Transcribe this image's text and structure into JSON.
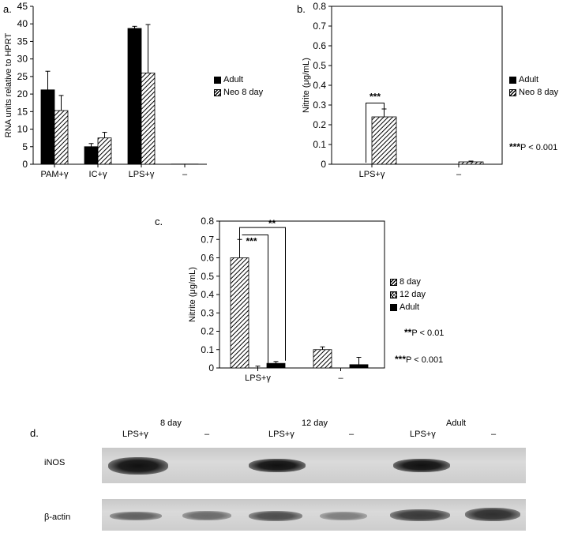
{
  "panels": {
    "a": "a.",
    "b": "b.",
    "c": "c.",
    "d": "d."
  },
  "chart_data": [
    {
      "type": "bar",
      "panel": "a",
      "ylabel": "RNA units relative to HPRT",
      "xlabel": "",
      "categories": [
        "PAM+γ",
        "IC+γ",
        "LPS+γ",
        "–"
      ],
      "series": [
        {
          "name": "Adult",
          "pattern": "solid",
          "values": [
            21.2,
            5.0,
            38.7,
            0.05
          ],
          "errors": [
            5.3,
            0.9,
            0.6,
            0
          ]
        },
        {
          "name": "Neo 8 day",
          "pattern": "hatch",
          "values": [
            15.3,
            7.5,
            26.0,
            0.05
          ],
          "errors": [
            4.3,
            1.6,
            13.8,
            0
          ]
        }
      ],
      "ylim": [
        0,
        45
      ],
      "yticks": [
        0,
        5,
        10,
        15,
        20,
        25,
        30,
        35,
        40,
        45
      ],
      "grid": false,
      "legend": "right"
    },
    {
      "type": "bar",
      "panel": "b",
      "ylabel": "Nitrite (μg/mL)",
      "xlabel": "",
      "categories": [
        "LPS+γ",
        "–"
      ],
      "series": [
        {
          "name": "Adult",
          "pattern": "solid",
          "values": [
            0,
            0
          ],
          "errors": [
            0,
            0
          ]
        },
        {
          "name": "Neo 8 day",
          "pattern": "hatch",
          "values": [
            0.24,
            0.012
          ],
          "errors": [
            0.04,
            0.004
          ]
        }
      ],
      "ylim": [
        0,
        0.8
      ],
      "yticks": [
        0,
        0.1,
        0.2,
        0.3,
        0.4,
        0.5,
        0.6,
        0.7,
        0.8
      ],
      "grid": false,
      "legend": "right",
      "annotations": [
        {
          "text": "***",
          "between": "LPS+γ: Adult vs Neo 8 day"
        },
        {
          "text": "***P < 0.001"
        }
      ]
    },
    {
      "type": "bar",
      "panel": "c",
      "ylabel": "Nitrite (μg/mL)",
      "xlabel": "",
      "categories": [
        "LPS+γ",
        "–"
      ],
      "series": [
        {
          "name": "8 day",
          "pattern": "hatch",
          "values": [
            0.6,
            0.1
          ],
          "errors": [
            0.1,
            0.015
          ]
        },
        {
          "name": "12 day",
          "pattern": "cross",
          "values": [
            0.0,
            0.0
          ],
          "errors": [
            0.01,
            0
          ]
        },
        {
          "name": "Adult",
          "pattern": "solid",
          "values": [
            0.025,
            0.018
          ],
          "errors": [
            0.01,
            0.04
          ]
        }
      ],
      "ylim": [
        0,
        0.8
      ],
      "yticks": [
        0,
        0.1,
        0.2,
        0.3,
        0.4,
        0.5,
        0.6,
        0.7,
        0.8
      ],
      "grid": false,
      "legend": "right",
      "annotations": [
        {
          "text": "***",
          "between": "LPS+γ: 8 day vs 12 day"
        },
        {
          "text": "**",
          "between": "LPS+γ: 8 day vs Adult"
        },
        {
          "text": "**P < 0.01"
        },
        {
          "text": "***P < 0.001"
        }
      ]
    }
  ],
  "legend_b": {
    "adult": "Adult",
    "neo": "Neo 8 day"
  },
  "notes": {
    "b_p": "P < 0.001",
    "b_stars": "***",
    "c_p1": "P < 0.01",
    "c_stars1": "**",
    "c_p2": "P < 0.001",
    "c_stars2": "***"
  },
  "blot": {
    "groups": [
      "8 day",
      "12 day",
      "Adult"
    ],
    "lanes": [
      "LPS+γ",
      "–",
      "LPS+γ",
      "–",
      "LPS+γ",
      "–"
    ],
    "rows": [
      "iNOS",
      "β-actin"
    ]
  }
}
